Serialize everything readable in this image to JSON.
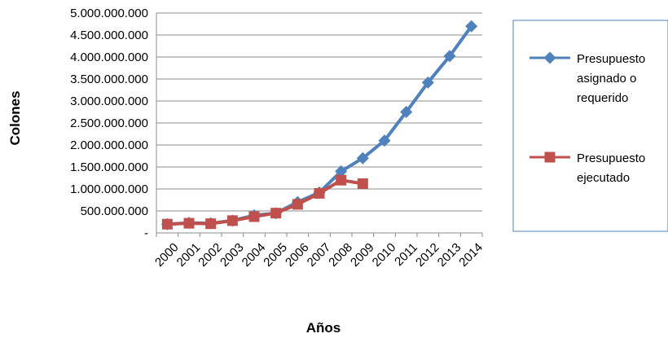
{
  "chart_data": {
    "type": "line",
    "title": "",
    "xlabel": "Años",
    "ylabel": "Colones",
    "x": [
      "2000",
      "2001",
      "2002",
      "2003",
      "2004",
      "2005",
      "2006",
      "2007",
      "2008",
      "2009",
      "2010",
      "2011",
      "2012",
      "2013",
      "2014"
    ],
    "ylim": [
      0,
      5000000000
    ],
    "y_ticks": [
      0,
      500000000,
      1000000000,
      1500000000,
      2000000000,
      2500000000,
      3000000000,
      3500000000,
      4000000000,
      4500000000,
      5000000000
    ],
    "y_tick_labels": [
      "-",
      "500.000.000",
      "1.000.000.000",
      "1.500.000.000",
      "2.000.000.000",
      "2.500.000.000",
      "3.000.000.000",
      "3.500.000.000",
      "4.000.000.000",
      "4.500.000.000",
      "5.000.000.000"
    ],
    "grid": "horizontal",
    "legend_position": "right",
    "series": [
      {
        "name": "Presupuesto asignado o requerido",
        "legend_lines": [
          "Presupuesto",
          "asignado o",
          "requerido"
        ],
        "color": "#4F81BD",
        "marker": "diamond",
        "values": [
          200000000,
          230000000,
          220000000,
          280000000,
          400000000,
          450000000,
          700000000,
          920000000,
          1400000000,
          1700000000,
          2100000000,
          2750000000,
          3420000000,
          4020000000,
          4700000000
        ]
      },
      {
        "name": "Presupuesto ejecutado",
        "legend_lines": [
          "Presupuesto",
          "ejecutado"
        ],
        "color": "#C0504D",
        "marker": "square",
        "values": [
          200000000,
          220000000,
          210000000,
          280000000,
          370000000,
          450000000,
          650000000,
          900000000,
          1200000000,
          1120000000,
          null,
          null,
          null,
          null,
          null
        ]
      }
    ]
  }
}
